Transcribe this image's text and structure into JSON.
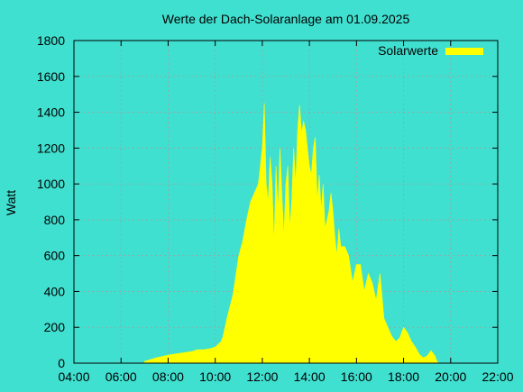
{
  "colors": {
    "background": "#40e0d0",
    "plot_background": "#40e0d0",
    "series": "#ffff00",
    "grid": "#a0a0a0",
    "axis": "#000000"
  },
  "chart_data": {
    "type": "area",
    "title": "Werte der Dach-Solaranlage am 01.09.2025",
    "xlabel": "",
    "ylabel": "Watt",
    "xlim": [
      "04:00",
      "22:00"
    ],
    "ylim": [
      0,
      1800
    ],
    "x_ticks": [
      "04:00",
      "06:00",
      "08:00",
      "10:00",
      "12:00",
      "14:00",
      "16:00",
      "18:00",
      "20:00",
      "22:00"
    ],
    "y_ticks": [
      "0",
      "200",
      "400",
      "600",
      "800",
      "1000",
      "1200",
      "1400",
      "1600",
      "1800"
    ],
    "grid": true,
    "legend_position": "top-right",
    "series": [
      {
        "name": "Solarwerte",
        "x": [
          "07:00",
          "07:30",
          "08:00",
          "08:30",
          "09:00",
          "09:15",
          "09:30",
          "09:45",
          "10:00",
          "10:15",
          "10:20",
          "10:30",
          "10:45",
          "10:50",
          "11:00",
          "11:10",
          "11:20",
          "11:30",
          "11:40",
          "11:50",
          "11:55",
          "12:00",
          "12:05",
          "12:10",
          "12:15",
          "12:20",
          "12:25",
          "12:30",
          "12:35",
          "12:40",
          "12:45",
          "12:50",
          "12:55",
          "13:00",
          "13:05",
          "13:10",
          "13:15",
          "13:20",
          "13:25",
          "13:30",
          "13:35",
          "13:40",
          "13:45",
          "13:50",
          "13:55",
          "14:00",
          "14:05",
          "14:10",
          "14:15",
          "14:20",
          "14:25",
          "14:30",
          "14:35",
          "14:40",
          "14:45",
          "14:50",
          "14:55",
          "15:00",
          "15:05",
          "15:10",
          "15:15",
          "15:20",
          "15:30",
          "15:40",
          "15:50",
          "16:00",
          "16:10",
          "16:20",
          "16:30",
          "16:40",
          "16:50",
          "17:00",
          "17:10",
          "17:20",
          "17:30",
          "17:40",
          "17:50",
          "18:00",
          "18:10",
          "18:20",
          "18:30",
          "18:40",
          "18:50",
          "19:00",
          "19:10",
          "19:20",
          "19:25",
          "19:30"
        ],
        "values": [
          10,
          30,
          45,
          55,
          65,
          75,
          75,
          80,
          90,
          120,
          150,
          250,
          380,
          450,
          600,
          680,
          800,
          900,
          950,
          1000,
          1100,
          1200,
          1450,
          1000,
          900,
          1150,
          1000,
          650,
          1100,
          850,
          1200,
          950,
          700,
          1000,
          1100,
          750,
          900,
          1200,
          1000,
          1300,
          1440,
          1280,
          1350,
          1300,
          1200,
          1100,
          1050,
          1200,
          1260,
          900,
          1050,
          850,
          1000,
          750,
          800,
          850,
          950,
          850,
          700,
          600,
          750,
          650,
          650,
          600,
          450,
          550,
          550,
          400,
          500,
          450,
          350,
          500,
          250,
          200,
          150,
          120,
          140,
          200,
          170,
          120,
          90,
          50,
          30,
          40,
          70,
          40,
          10,
          0
        ]
      }
    ]
  }
}
